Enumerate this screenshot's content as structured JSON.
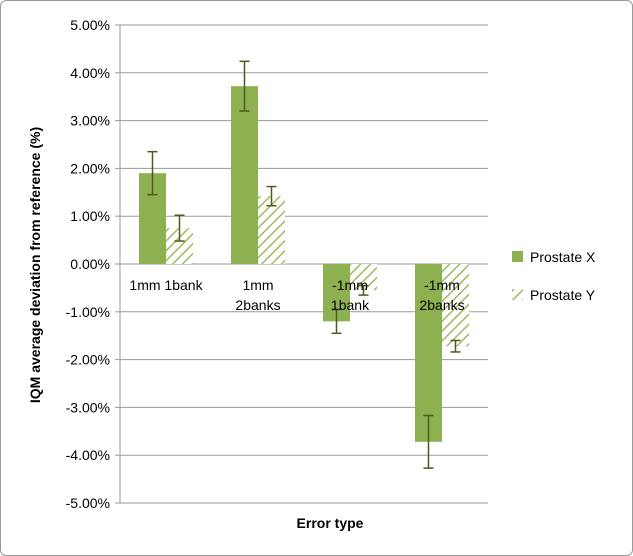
{
  "chart_data": {
    "type": "bar",
    "xlabel": "Error type",
    "ylabel": "IQM average deviation from reference (%)",
    "ylim": [
      -5,
      5
    ],
    "y_tick_step": 1,
    "y_tick_labels": [
      "5.00%",
      "4.00%",
      "3.00%",
      "2.00%",
      "1.00%",
      "0.00%",
      "-1.00%",
      "-2.00%",
      "-3.00%",
      "-4.00%",
      "-5.00%"
    ],
    "grid": true,
    "legend_position": "right",
    "categories": [
      [
        "1mm 1bank"
      ],
      [
        "1mm",
        "2banks"
      ],
      [
        "-1mm",
        "1bank"
      ],
      [
        "-1mm",
        "2banks"
      ]
    ],
    "series": [
      {
        "name": "Prostate X",
        "pattern": "solid",
        "color": "#8db050",
        "values": [
          1.9,
          3.72,
          -1.2,
          -3.72
        ],
        "error": [
          0.45,
          0.52,
          0.25,
          0.55
        ]
      },
      {
        "name": "Prostate Y",
        "pattern": "hatched",
        "color": "#9ebb5f",
        "values": [
          0.75,
          1.42,
          -0.55,
          -1.72
        ],
        "error": [
          0.27,
          0.2,
          0.1,
          0.12
        ]
      }
    ],
    "error_bar_color": "#4f5a1e"
  }
}
